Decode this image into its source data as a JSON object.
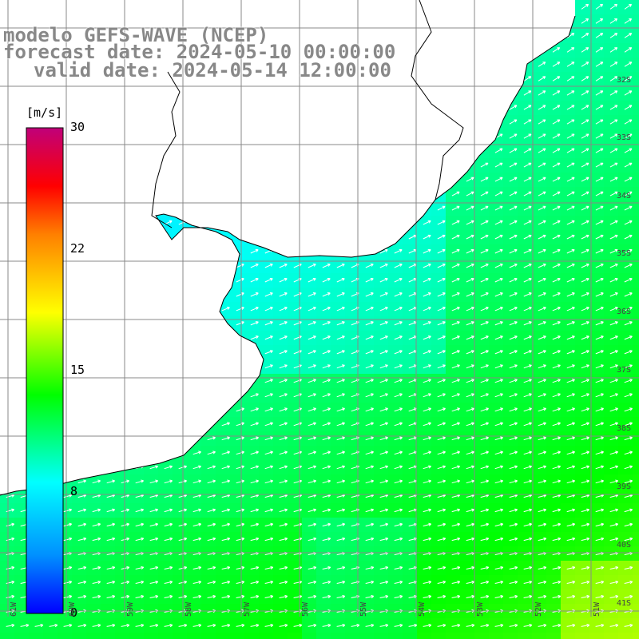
{
  "title": {
    "model": "modelo GEFS-WAVE (NCEP)",
    "forecast": "forecast date: 2024-05-10 00:00:00",
    "valid": "valid date: 2024-05-14 12:00:00"
  },
  "colorbar": {
    "unit": "[m/s]",
    "ticks": [
      "30",
      "22",
      "15",
      "8",
      "0"
    ],
    "tick_values": [
      30,
      22,
      15,
      8,
      0
    ],
    "colors": [
      "#0000ff",
      "#0090ff",
      "#00ffff",
      "#00ff00",
      "#ffff00",
      "#ff8000",
      "#ff0000",
      "#c0007a"
    ]
  },
  "map": {
    "lat_labels": [
      "32S",
      "33S",
      "34S",
      "35S",
      "36S",
      "37S",
      "38S",
      "39S",
      "40S",
      "41S"
    ],
    "lon_labels": [
      "61W",
      "60W",
      "59W",
      "58W",
      "57W",
      "56W",
      "55W",
      "54W",
      "53W",
      "52W",
      "51W"
    ],
    "field": "wind speed",
    "arrow_direction": "northeast",
    "land_color": "#ffffff",
    "coast_color": "#000000",
    "grid_color": "#888888"
  }
}
